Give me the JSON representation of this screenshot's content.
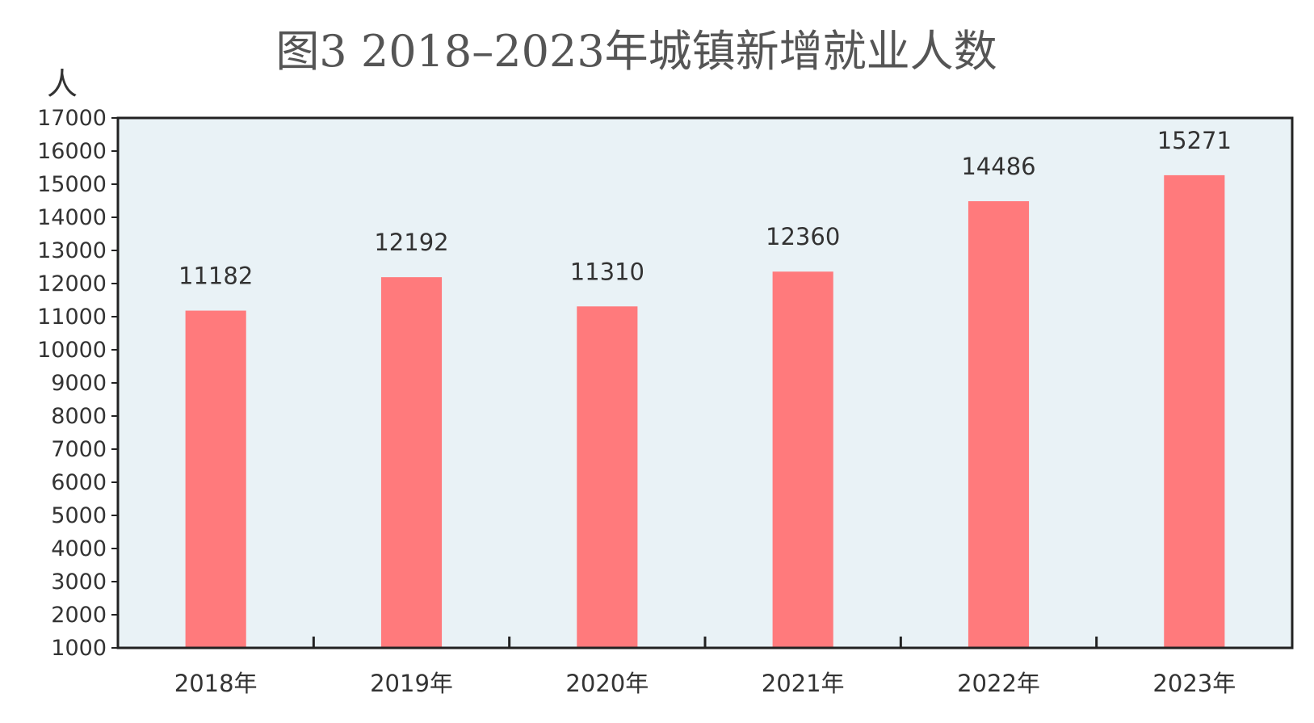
{
  "chart_data": {
    "type": "bar",
    "title": "图3  2018–2023年城镇新增就业人数",
    "ylabel": "人",
    "xlabel": "",
    "categories": [
      "2018年",
      "2019年",
      "2020年",
      "2021年",
      "2022年",
      "2023年"
    ],
    "values": [
      11182,
      12192,
      11310,
      12360,
      14486,
      15271
    ],
    "data_labels": [
      "11182",
      "12192",
      "11310",
      "12360",
      "14486",
      "15271"
    ],
    "ylim": [
      1000,
      17000
    ],
    "yticks": [
      1000,
      2000,
      3000,
      4000,
      5000,
      6000,
      7000,
      8000,
      9000,
      10000,
      11000,
      12000,
      13000,
      14000,
      15000,
      16000,
      17000
    ],
    "ytick_labels": [
      "1000",
      "2000",
      "3000",
      "4000",
      "5000",
      "6000",
      "7000",
      "8000",
      "9000",
      "10000",
      "11000",
      "12000",
      "13000",
      "14000",
      "15000",
      "16000",
      "17000"
    ],
    "grid": false,
    "legend": "none",
    "colors": {
      "bar": "#ff7a7c",
      "plot_background": "#e9f2f6",
      "axis": "#222222"
    }
  }
}
